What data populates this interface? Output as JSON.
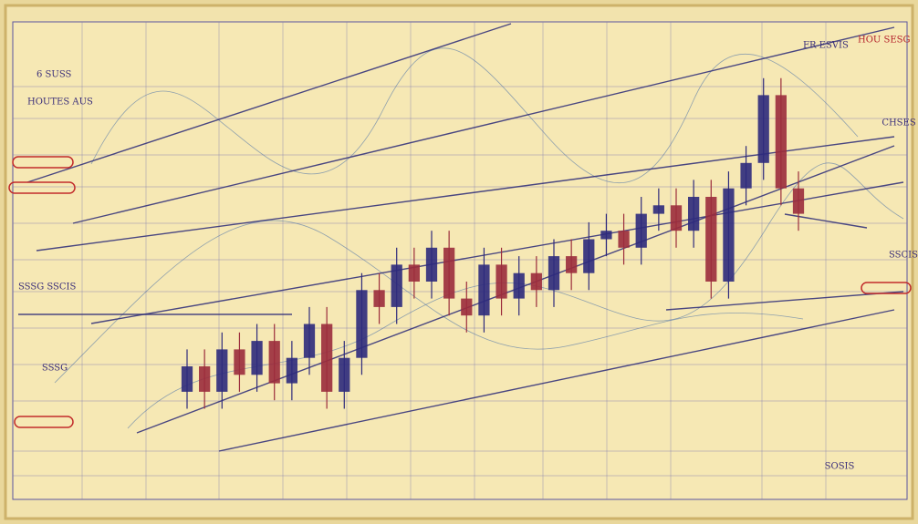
{
  "chart_data": {
    "type": "candlestick",
    "categories": [
      null,
      null,
      null,
      null,
      null,
      null,
      null,
      null,
      null,
      null,
      null,
      null,
      null,
      null,
      null,
      null,
      null,
      null,
      null,
      null,
      null,
      null,
      null,
      null,
      null,
      null,
      null,
      null,
      null,
      null,
      null,
      null,
      null,
      null,
      null,
      null
    ],
    "open": [
      14,
      20,
      14,
      24,
      18,
      26,
      16,
      22,
      30,
      14,
      22,
      38,
      34,
      44,
      40,
      48,
      36,
      32,
      44,
      36,
      42,
      38,
      46,
      42,
      50,
      52,
      48,
      56,
      58,
      52,
      60,
      40,
      62,
      68,
      84,
      62
    ],
    "close": [
      20,
      14,
      24,
      18,
      26,
      16,
      22,
      30,
      14,
      22,
      38,
      34,
      44,
      40,
      48,
      36,
      32,
      44,
      36,
      42,
      38,
      46,
      42,
      50,
      52,
      48,
      56,
      58,
      52,
      60,
      40,
      62,
      68,
      84,
      62,
      56
    ],
    "high": [
      24,
      24,
      28,
      28,
      30,
      30,
      26,
      34,
      34,
      26,
      42,
      42,
      48,
      48,
      52,
      52,
      40,
      48,
      48,
      46,
      46,
      50,
      50,
      54,
      56,
      56,
      60,
      62,
      62,
      64,
      64,
      66,
      72,
      88,
      88,
      66
    ],
    "low": [
      10,
      10,
      10,
      14,
      14,
      12,
      12,
      18,
      10,
      10,
      18,
      30,
      30,
      36,
      36,
      32,
      28,
      28,
      32,
      32,
      34,
      34,
      38,
      38,
      46,
      44,
      44,
      52,
      48,
      48,
      36,
      36,
      58,
      64,
      58,
      52
    ],
    "ylim": [
      0,
      100
    ],
    "up_color": "#2e2a7c",
    "down_color": "#9b2c3c",
    "labels": [
      "6 SUSS",
      "HOUTES AUS",
      "SSSG SSCIS",
      "SSSG",
      "HOU SESG",
      "FR ESVIS",
      "CHSES",
      "SSCIS",
      "SOSIS"
    ]
  }
}
